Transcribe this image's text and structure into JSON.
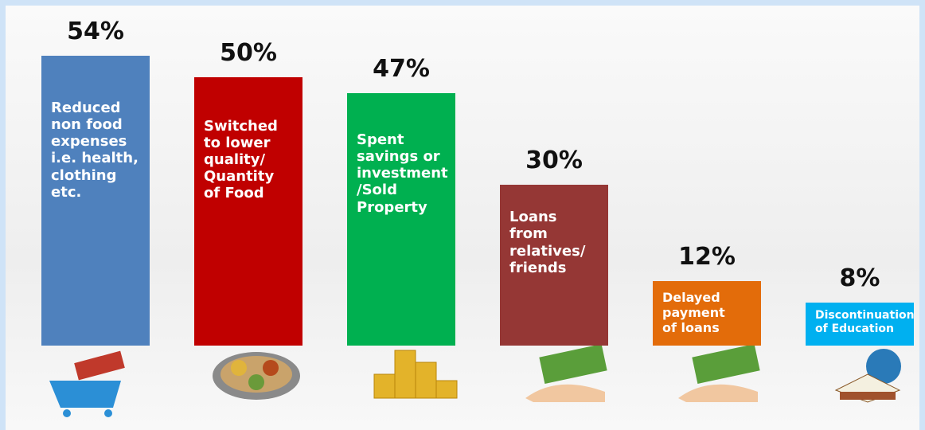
{
  "chart_data": {
    "type": "bar",
    "categories": [
      "Reduced\nnon food\nexpenses\ni.e. health,\nclothing\netc.",
      "Switched\nto lower\nquality/\nQuantity\nof Food",
      "Spent\nsavings or\ninvestment\n/Sold\nProperty",
      "Loans\nfrom\nrelatives/\nfriends",
      "Delayed\npayment\nof loans",
      "Discontinuation\nof Education"
    ],
    "values": [
      54,
      50,
      47,
      30,
      12,
      8
    ],
    "value_labels": [
      "54%",
      "50%",
      "47%",
      "30%",
      "12%",
      "8%"
    ],
    "colors": [
      "#4f81bd",
      "#c00000",
      "#00b050",
      "#953735",
      "#e36c0a",
      "#00b0f0"
    ]
  }
}
